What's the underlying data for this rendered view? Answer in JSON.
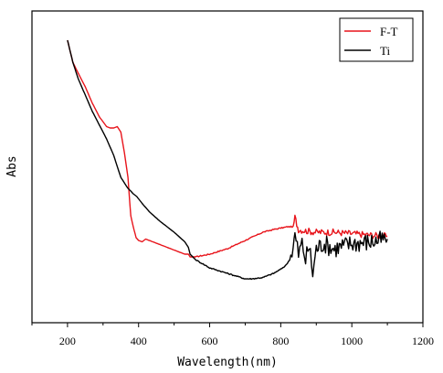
{
  "chart_data": {
    "type": "line",
    "title": "",
    "xlabel": "Wavelength(nm)",
    "ylabel": "Abs",
    "xlim": [
      100,
      1200
    ],
    "ylim": [
      0,
      1
    ],
    "xticks": [
      200,
      400,
      600,
      800,
      1000,
      1200
    ],
    "yticks": [],
    "grid": false,
    "legend": {
      "position": "top-right",
      "entries": [
        "F-T",
        "Ti"
      ]
    },
    "series": [
      {
        "name": "F-T",
        "color": "#e8141b",
        "noise_start": 840,
        "x": [
          200,
          215,
          230,
          250,
          270,
          290,
          310,
          320,
          330,
          340,
          350,
          360,
          370,
          378,
          385,
          393,
          400,
          410,
          420,
          440,
          470,
          500,
          530,
          540,
          545,
          560,
          580,
          600,
          650,
          700,
          750,
          780,
          800,
          820,
          835,
          840,
          845,
          850,
          870,
          900,
          950,
          1000,
          1050,
          1100
        ],
        "y": [
          0.98,
          0.9,
          0.86,
          0.81,
          0.75,
          0.7,
          0.665,
          0.66,
          0.66,
          0.665,
          0.645,
          0.57,
          0.48,
          0.34,
          0.3,
          0.26,
          0.25,
          0.245,
          0.255,
          0.245,
          0.23,
          0.215,
          0.2,
          0.2,
          0.19,
          0.19,
          0.195,
          0.2,
          0.22,
          0.25,
          0.28,
          0.29,
          0.295,
          0.3,
          0.3,
          0.335,
          0.31,
          0.29,
          0.285,
          0.28,
          0.28,
          0.275,
          0.27,
          0.265
        ]
      },
      {
        "name": "Ti",
        "color": "#000000",
        "noise_start": 830,
        "x": [
          200,
          215,
          230,
          250,
          270,
          290,
          310,
          330,
          350,
          370,
          378,
          385,
          395,
          410,
          430,
          460,
          500,
          530,
          540,
          545,
          560,
          600,
          650,
          700,
          720,
          750,
          780,
          800,
          815,
          825,
          835,
          840,
          850,
          860,
          870,
          880,
          890,
          900,
          920,
          950,
          1000,
          1050,
          1100
        ],
        "y": [
          0.98,
          0.9,
          0.84,
          0.78,
          0.72,
          0.67,
          0.62,
          0.56,
          0.48,
          0.44,
          0.43,
          0.42,
          0.41,
          0.385,
          0.355,
          0.32,
          0.28,
          0.245,
          0.225,
          0.2,
          0.18,
          0.15,
          0.13,
          0.11,
          0.11,
          0.115,
          0.13,
          0.145,
          0.16,
          0.18,
          0.23,
          0.27,
          0.2,
          0.24,
          0.18,
          0.23,
          0.13,
          0.22,
          0.24,
          0.22,
          0.24,
          0.245,
          0.255
        ]
      }
    ]
  }
}
